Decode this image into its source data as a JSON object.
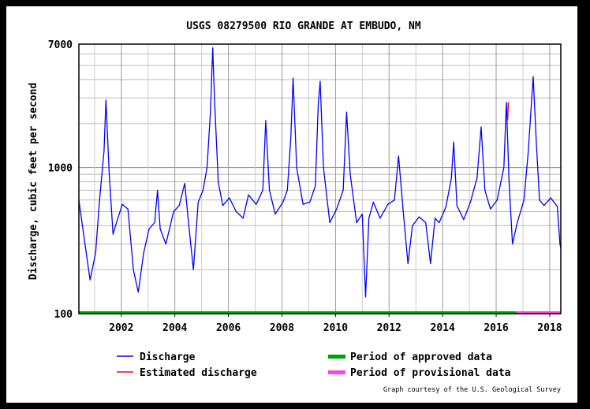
{
  "chart_data": {
    "type": "line",
    "title": "USGS 08279500 RIO GRANDE AT EMBUDO, NM",
    "ylabel": "Discharge, cubic feet per second",
    "xlabel": "",
    "y_scale": "log",
    "ylim": [
      100,
      7000
    ],
    "xlim": [
      "2000-06-01",
      "2018-06-01"
    ],
    "y_ticks": [
      "100",
      "1000",
      "7000"
    ],
    "x_ticks": [
      "2002",
      "2004",
      "2006",
      "2008",
      "2010",
      "2012",
      "2014",
      "2016",
      "2018"
    ],
    "grid": true,
    "series": [
      {
        "name": "Discharge",
        "color": "#0000ff",
        "points": [
          [
            "2000-06-01",
            600
          ],
          [
            "2000-08-15",
            320
          ],
          [
            "2000-11-01",
            170
          ],
          [
            "2001-01-15",
            260
          ],
          [
            "2001-03-10",
            600
          ],
          [
            "2001-05-10",
            1300
          ],
          [
            "2001-06-05",
            2900
          ],
          [
            "2001-07-20",
            900
          ],
          [
            "2001-09-10",
            350
          ],
          [
            "2001-11-15",
            450
          ],
          [
            "2002-01-15",
            560
          ],
          [
            "2002-04-01",
            520
          ],
          [
            "2002-06-15",
            200
          ],
          [
            "2002-08-20",
            140
          ],
          [
            "2002-11-01",
            260
          ],
          [
            "2003-01-15",
            380
          ],
          [
            "2003-04-01",
            420
          ],
          [
            "2003-05-10",
            700
          ],
          [
            "2003-06-15",
            380
          ],
          [
            "2003-09-01",
            300
          ],
          [
            "2003-12-15",
            500
          ],
          [
            "2004-03-01",
            550
          ],
          [
            "2004-05-15",
            780
          ],
          [
            "2004-07-10",
            400
          ],
          [
            "2004-09-10",
            200
          ],
          [
            "2004-11-15",
            580
          ],
          [
            "2005-01-20",
            700
          ],
          [
            "2005-03-15",
            1000
          ],
          [
            "2005-05-01",
            2400
          ],
          [
            "2005-06-01",
            6600
          ],
          [
            "2005-06-25",
            3000
          ],
          [
            "2005-08-15",
            800
          ],
          [
            "2005-10-15",
            550
          ],
          [
            "2006-01-15",
            620
          ],
          [
            "2006-04-15",
            500
          ],
          [
            "2006-07-20",
            450
          ],
          [
            "2006-10-01",
            650
          ],
          [
            "2007-01-15",
            560
          ],
          [
            "2007-04-15",
            700
          ],
          [
            "2007-05-25",
            2100
          ],
          [
            "2007-07-15",
            700
          ],
          [
            "2007-10-01",
            480
          ],
          [
            "2008-01-15",
            580
          ],
          [
            "2008-03-15",
            700
          ],
          [
            "2008-05-01",
            1600
          ],
          [
            "2008-06-01",
            4100
          ],
          [
            "2008-07-20",
            1000
          ],
          [
            "2008-10-15",
            560
          ],
          [
            "2009-01-15",
            580
          ],
          [
            "2009-04-01",
            750
          ],
          [
            "2009-05-10",
            2700
          ],
          [
            "2009-06-05",
            3900
          ],
          [
            "2009-07-20",
            1000
          ],
          [
            "2009-10-15",
            420
          ],
          [
            "2010-01-15",
            520
          ],
          [
            "2010-04-15",
            700
          ],
          [
            "2010-06-01",
            2400
          ],
          [
            "2010-07-20",
            900
          ],
          [
            "2010-10-15",
            420
          ],
          [
            "2011-01-01",
            480
          ],
          [
            "2011-02-15",
            130
          ],
          [
            "2011-04-01",
            450
          ],
          [
            "2011-06-01",
            580
          ],
          [
            "2011-09-01",
            450
          ],
          [
            "2011-12-15",
            560
          ],
          [
            "2012-03-15",
            600
          ],
          [
            "2012-05-10",
            1200
          ],
          [
            "2012-07-15",
            480
          ],
          [
            "2012-09-15",
            220
          ],
          [
            "2012-11-15",
            400
          ],
          [
            "2013-02-15",
            460
          ],
          [
            "2013-05-15",
            420
          ],
          [
            "2013-07-20",
            220
          ],
          [
            "2013-09-20",
            450
          ],
          [
            "2013-11-15",
            420
          ],
          [
            "2014-02-15",
            540
          ],
          [
            "2014-05-01",
            850
          ],
          [
            "2014-06-01",
            1500
          ],
          [
            "2014-07-15",
            550
          ],
          [
            "2014-10-15",
            440
          ],
          [
            "2015-01-15",
            580
          ],
          [
            "2015-04-15",
            850
          ],
          [
            "2015-06-10",
            1900
          ],
          [
            "2015-08-01",
            700
          ],
          [
            "2015-10-15",
            520
          ],
          [
            "2016-01-15",
            600
          ],
          [
            "2016-04-15",
            1000
          ],
          [
            "2016-05-20",
            2800
          ],
          [
            "2016-06-25",
            800
          ],
          [
            "2016-08-10",
            300
          ],
          [
            "2016-10-15",
            420
          ],
          [
            "2017-01-15",
            600
          ],
          [
            "2017-03-15",
            1300
          ],
          [
            "2017-05-01",
            3000
          ],
          [
            "2017-05-20",
            4200
          ],
          [
            "2017-07-01",
            1500
          ],
          [
            "2017-08-15",
            600
          ],
          [
            "2017-10-15",
            550
          ],
          [
            "2018-01-15",
            620
          ],
          [
            "2018-04-15",
            540
          ],
          [
            "2018-05-20",
            300
          ],
          [
            "2018-06-01",
            280
          ]
        ]
      },
      {
        "name": "Estimated discharge",
        "color": "#ff0000",
        "points": [
          [
            "2016-06-05",
            2100
          ],
          [
            "2016-06-15",
            2800
          ]
        ]
      }
    ],
    "periods": [
      {
        "name": "Period of approved data",
        "color": "#00a000",
        "from": "2000-06-01",
        "to": "2016-09-30"
      },
      {
        "name": "Period of provisional data",
        "color": "#ff44dd",
        "from": "2016-09-30",
        "to": "2018-06-01"
      }
    ],
    "credit": "Graph courtesy of the U.S. Geological Survey"
  }
}
